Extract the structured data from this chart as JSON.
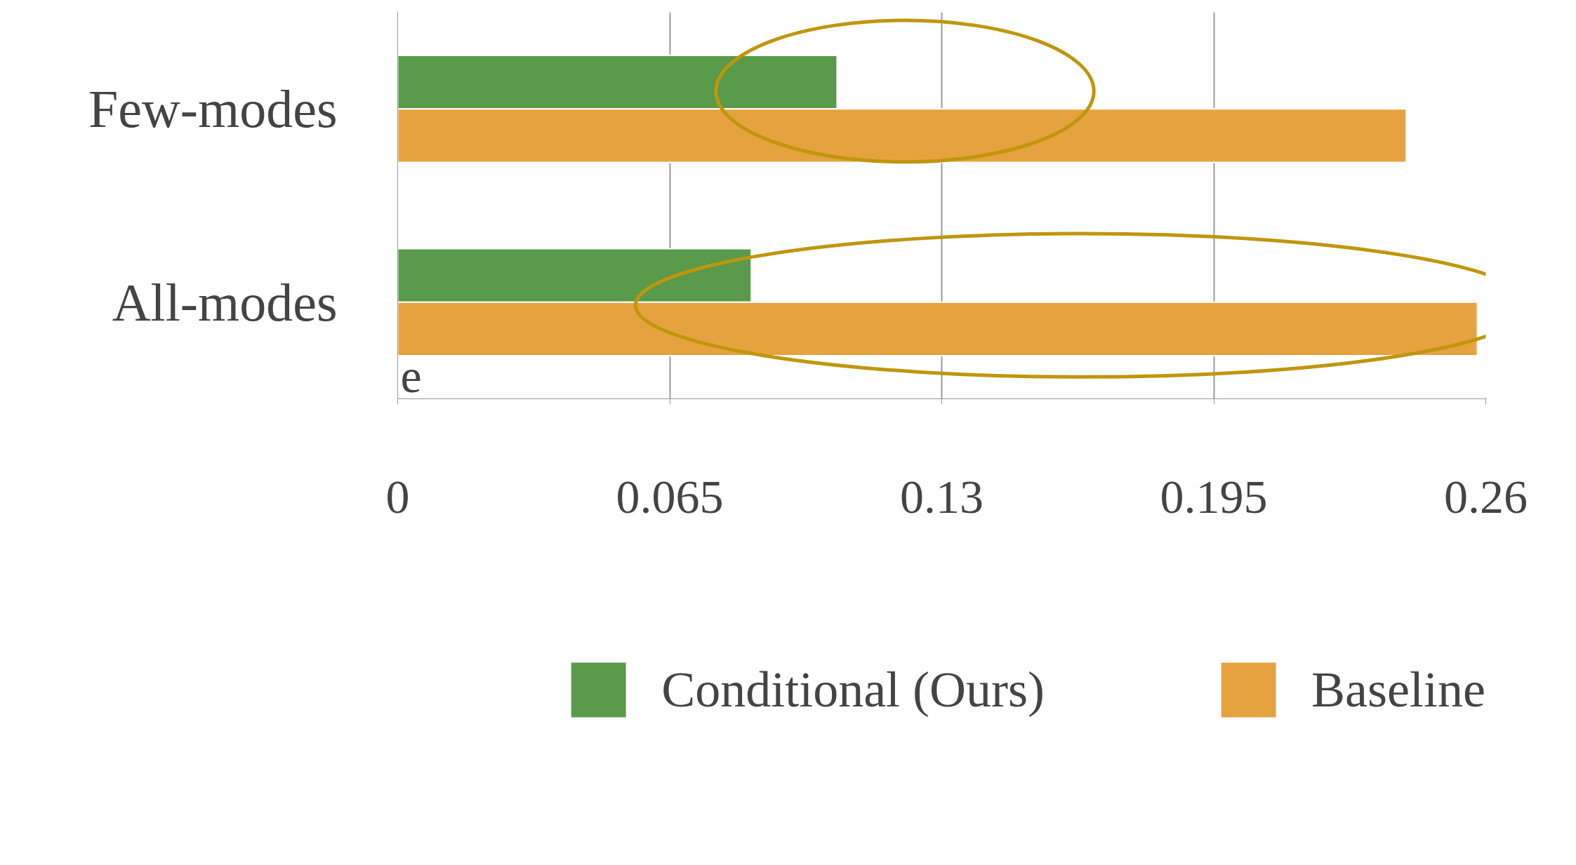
{
  "chart_data": {
    "type": "bar",
    "orientation": "horizontal",
    "categories": [
      "Few-modes",
      "All-modes"
    ],
    "series": [
      {
        "name": "Conditional (Ours)",
        "color": "#5a9a4b",
        "values": [
          0.105,
          0.0845
        ]
      },
      {
        "name": "Baseline",
        "color": "#e6a23f",
        "values": [
          0.241,
          0.258
        ]
      }
    ],
    "xlim": [
      0,
      0.26
    ],
    "xticks": [
      0,
      0.065,
      0.13,
      0.195,
      0.26
    ],
    "grid": "x",
    "legend": "bottom",
    "annotations": [
      "e"
    ]
  }
}
